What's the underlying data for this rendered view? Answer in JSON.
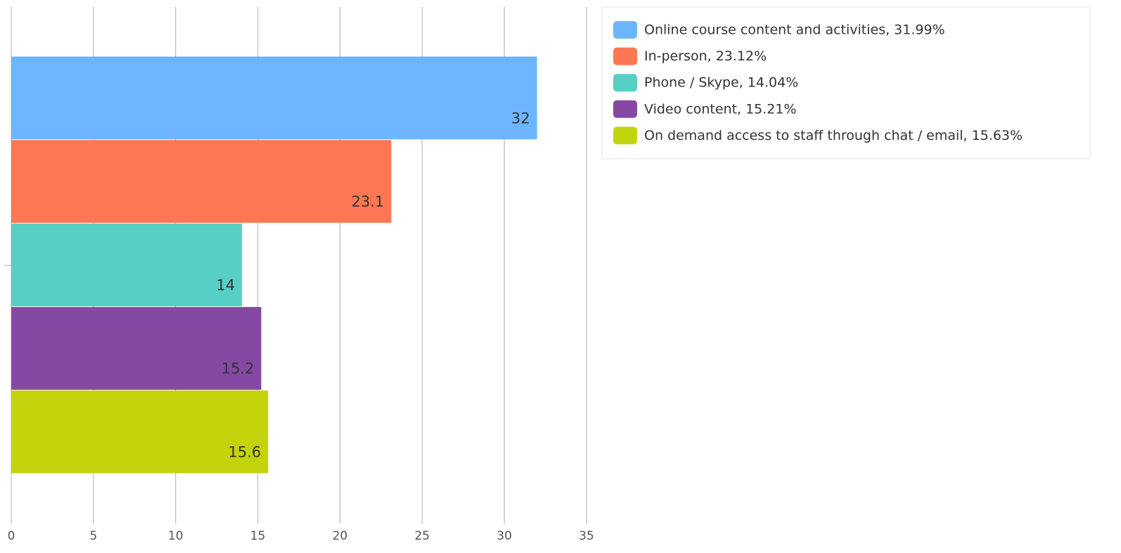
{
  "chart_data": {
    "type": "bar",
    "orientation": "horizontal",
    "categories": [
      null
    ],
    "series": [
      {
        "name": "Online course content and activities, 31.99%",
        "color": "#6db6ff",
        "values": [
          31.99
        ],
        "value_labels": [
          "32"
        ]
      },
      {
        "name": "In-person, 23.12%",
        "color": "#ff7754",
        "values": [
          23.12
        ],
        "value_labels": [
          "23.1"
        ]
      },
      {
        "name": "Phone / Skype, 14.04%",
        "color": "#57cfc4",
        "values": [
          14.04
        ],
        "value_labels": [
          "14"
        ]
      },
      {
        "name": "Video content, 15.21%",
        "color": "#8549a3",
        "values": [
          15.21
        ],
        "value_labels": [
          "15.2"
        ]
      },
      {
        "name": "On demand access to staff through chat / email, 15.63%",
        "color": "#c3d40d",
        "values": [
          15.63
        ],
        "value_labels": [
          "15.6"
        ]
      }
    ],
    "xlim": [
      0,
      35
    ],
    "xticks": [
      0,
      5,
      10,
      15,
      20,
      25,
      30,
      35
    ],
    "grid": true,
    "legend": "top-right"
  }
}
